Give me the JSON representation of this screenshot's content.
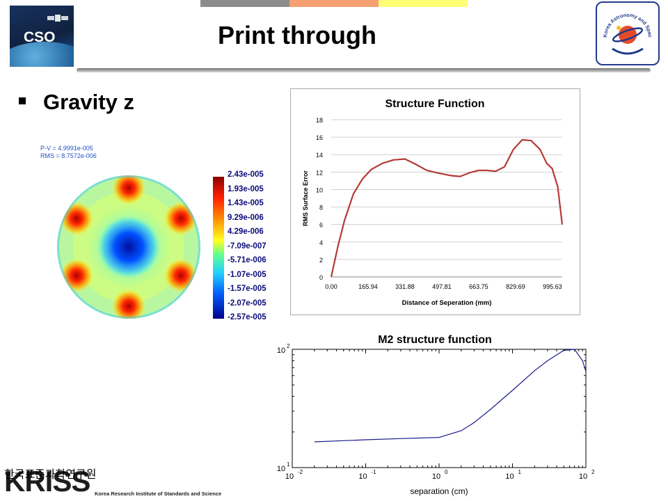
{
  "header": {
    "title": "Print through",
    "bar_colors": [
      "#8c8c8c",
      "#f5a070",
      "#ffff77"
    ]
  },
  "logos": {
    "left": "CSO",
    "right_arc_text": "Korea Astronomy and Space Science Institute",
    "bottom": "KRISS",
    "bottom_korean": "한국표준과학연구원",
    "bottom_english": "Korea Research Institute of Standards and Science"
  },
  "bullet": {
    "text": "Gravity z"
  },
  "surface_map": {
    "pv": "P-V = 4.9991e-005",
    "rms": "RMS = 8.7572e-006",
    "colorbar_labels": [
      "2.43e-005",
      "1.93e-005",
      "1.43e-005",
      "9.29e-006",
      "4.29e-006",
      "-7.09e-007",
      "-5.71e-006",
      "-1.07e-005",
      "-1.57e-005",
      "-2.07e-005",
      "-2.57e-005"
    ]
  },
  "chart_data": [
    {
      "type": "line",
      "title": "Structure Function",
      "xlabel": "Distance of Seperation (mm)",
      "ylabel": "RMS Surface Error",
      "xticks": [
        "0.00",
        "165.94",
        "331.88",
        "497.81",
        "663.75",
        "829.69",
        "995.63"
      ],
      "ylim": [
        0,
        18
      ],
      "yticks": [
        "0",
        "2",
        "4",
        "6",
        "8",
        "10",
        "12",
        "14",
        "16",
        "18"
      ],
      "color": "#b23a36",
      "grid": "horizontal",
      "x": [
        0,
        30,
        60,
        100,
        140,
        180,
        230,
        280,
        331.88,
        380,
        430,
        480,
        540,
        580,
        620,
        663.75,
        700,
        740,
        780,
        820,
        860,
        900,
        940,
        970,
        995,
        1020,
        1040
      ],
      "y": [
        0,
        3.5,
        6.5,
        9.5,
        11.2,
        12.3,
        13.0,
        13.4,
        13.5,
        12.9,
        12.2,
        11.9,
        11.6,
        11.5,
        11.9,
        12.2,
        12.2,
        12.1,
        12.6,
        14.6,
        15.7,
        15.6,
        14.6,
        13.0,
        12.4,
        10.3,
        6.0
      ]
    },
    {
      "type": "line",
      "title": "M2 structure function",
      "xlabel": "separation (cm)",
      "ylabel": "",
      "x_scale": "log",
      "y_scale": "log",
      "xlim": [
        0.01,
        100
      ],
      "ylim": [
        10,
        100
      ],
      "xticks": [
        "10^-2",
        "10^-1",
        "10^0",
        "10^1",
        "10^2"
      ],
      "yticks": [
        "10^1",
        "10^2"
      ],
      "color": "#1a1a8c",
      "x": [
        0.02,
        0.05,
        0.1,
        0.3,
        1,
        2,
        3,
        5,
        10,
        20,
        30,
        50,
        70,
        90,
        100
      ],
      "y": [
        16.5,
        16.9,
        17.2,
        17.6,
        18.0,
        20.5,
        24.0,
        31.0,
        45.0,
        66.0,
        80.0,
        98.0,
        100.0,
        80.0,
        65.0
      ]
    }
  ]
}
